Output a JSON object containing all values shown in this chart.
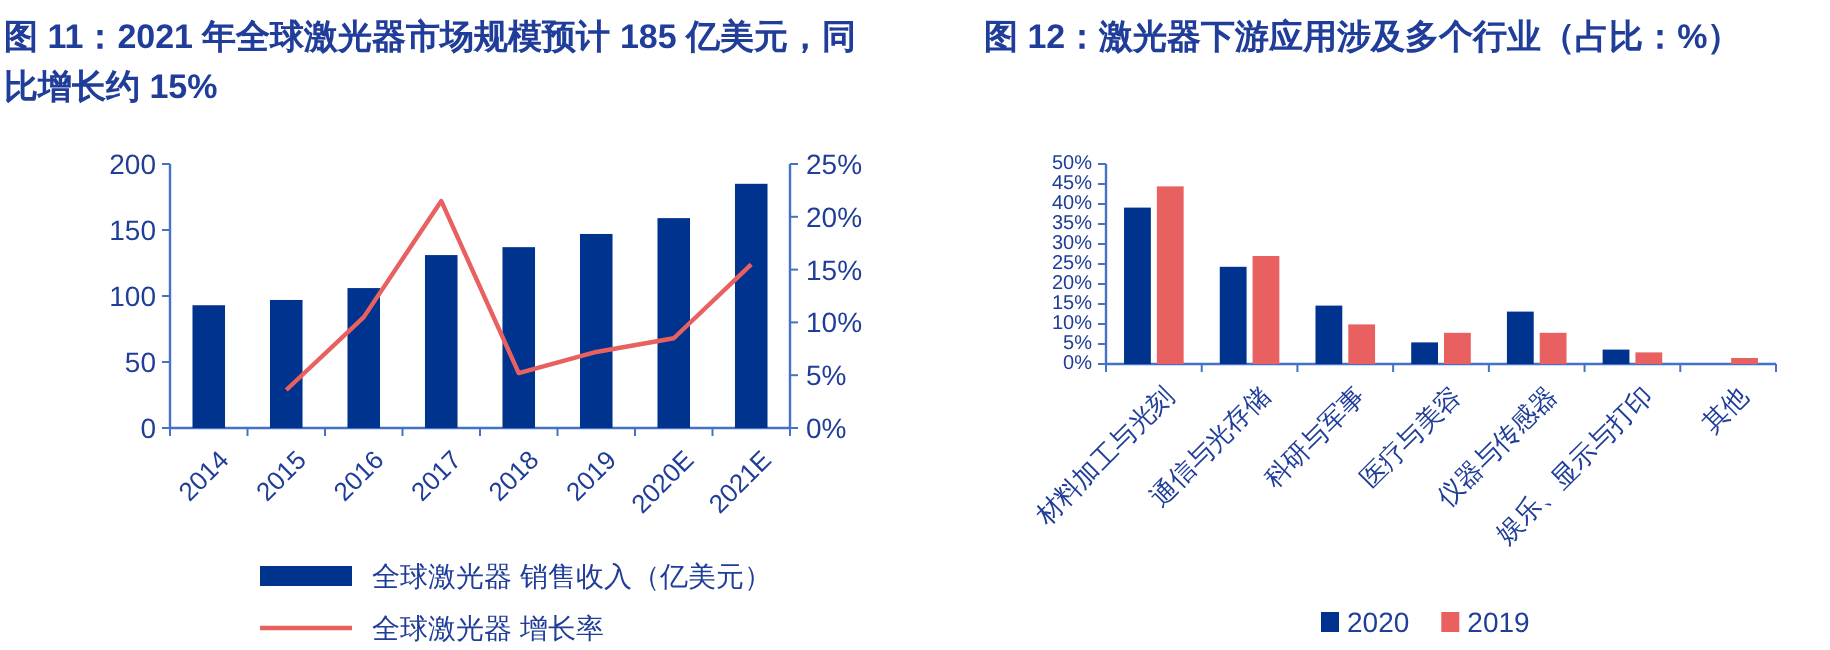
{
  "chart_data": [
    {
      "type": "bar",
      "title": "图 11：2021 年全球激光器市场规模预计 185 亿美元，同比增长约 15%",
      "categories": [
        "2014",
        "2015",
        "2016",
        "2017",
        "2018",
        "2019",
        "2020E",
        "2021E"
      ],
      "series": [
        {
          "name": "全球激光器 销售收入（亿美元）",
          "color": "#00338d",
          "values": [
            93,
            97,
            106,
            131,
            137,
            147,
            159,
            185
          ]
        },
        {
          "name": "全球激光器 增长率",
          "type": "line",
          "axis": "y2",
          "color": "#e8605f",
          "values": [
            null,
            3.6,
            10.5,
            21.5,
            5.2,
            7.2,
            8.5,
            15.5
          ]
        }
      ],
      "ylim": [
        0,
        200
      ],
      "yticks": [
        0,
        50,
        100,
        150,
        200
      ],
      "y2lim": [
        0,
        25
      ],
      "y2ticks": [
        {
          "value": 0,
          "label": "0%"
        },
        {
          "value": 5,
          "label": "5%"
        },
        {
          "value": 10,
          "label": "10%"
        },
        {
          "value": 15,
          "label": "15%"
        },
        {
          "value": 20,
          "label": "20%"
        },
        {
          "value": 25,
          "label": "25%"
        }
      ],
      "legend": "bottom",
      "marker": "none"
    },
    {
      "type": "bar",
      "title": "图 12：激光器下游应用涉及多个行业（占比：%）",
      "categories": [
        "材料加工与光刻",
        "通信与光存储",
        "科研与军事",
        "医疗与美容",
        "仪器与传感器",
        "娱乐、显示与打印",
        "其他"
      ],
      "series": [
        {
          "name": "2020",
          "color": "#00338d",
          "values": [
            39.1,
            24.3,
            14.6,
            5.4,
            13.1,
            3.6,
            null
          ]
        },
        {
          "name": "2019",
          "color": "#e8605f",
          "values": [
            44.4,
            27.0,
            9.9,
            7.8,
            7.8,
            2.9,
            1.5
          ]
        }
      ],
      "ylim": [
        0,
        50
      ],
      "yticks": [
        {
          "value": 0,
          "label": "0%"
        },
        {
          "value": 5,
          "label": "5%"
        },
        {
          "value": 10,
          "label": "10%"
        },
        {
          "value": 15,
          "label": "15%"
        },
        {
          "value": 20,
          "label": "20%"
        },
        {
          "value": 25,
          "label": "25%"
        },
        {
          "value": 30,
          "label": "30%"
        },
        {
          "value": 35,
          "label": "35%"
        },
        {
          "value": 40,
          "label": "40%"
        },
        {
          "value": 45,
          "label": "45%"
        },
        {
          "value": 50,
          "label": "50%"
        }
      ],
      "legend": "bottom"
    }
  ]
}
